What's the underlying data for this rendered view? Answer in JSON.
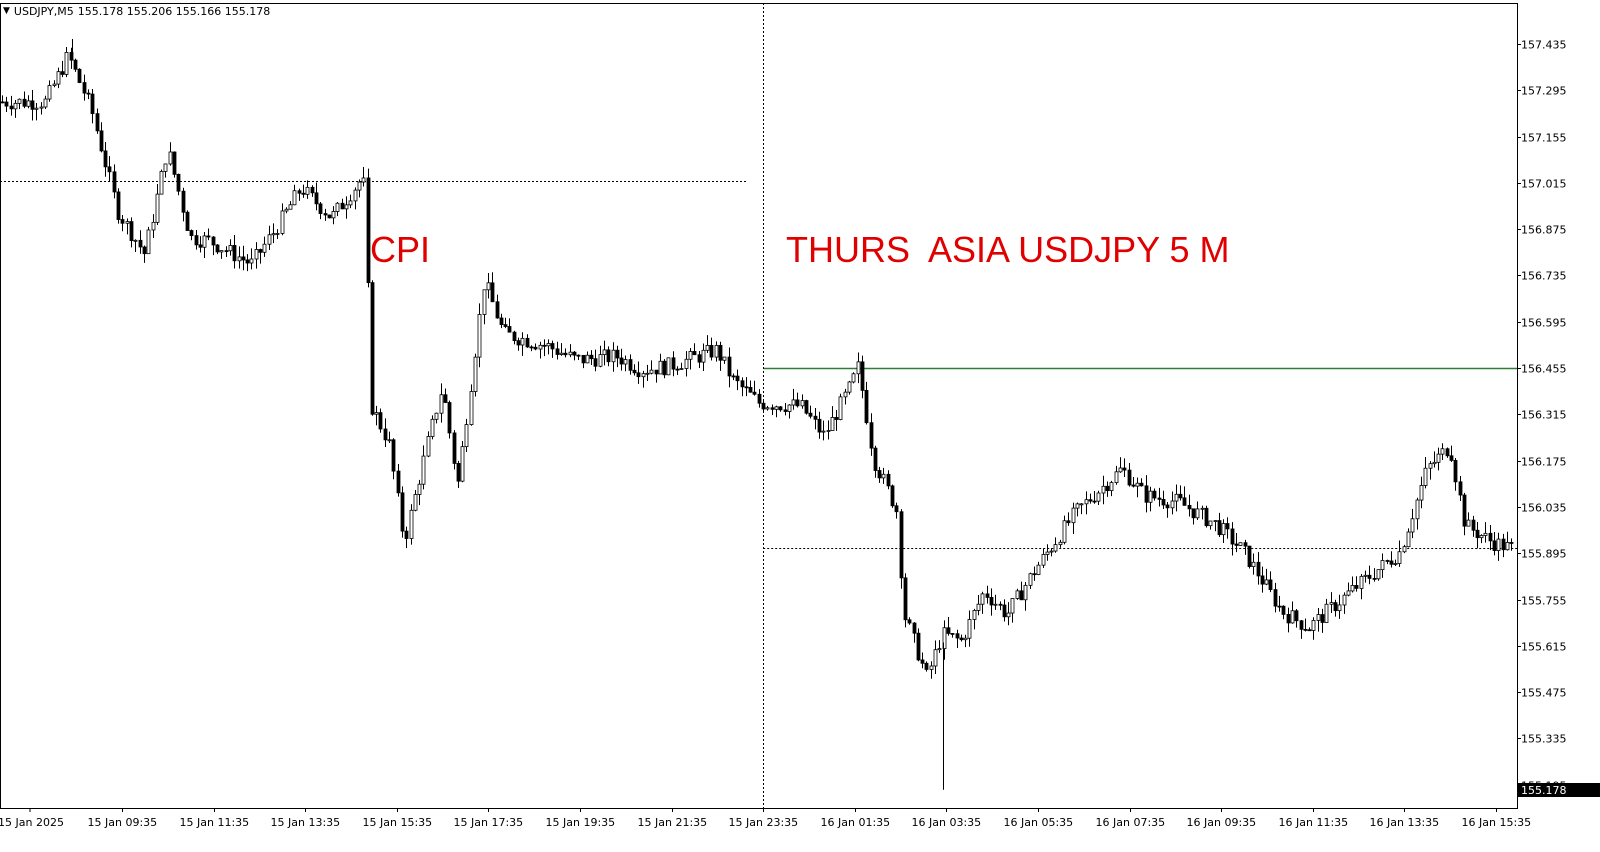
{
  "header": {
    "symbol": "USDJPY,M5",
    "ohlc": "155.178 155.206 155.166 155.178"
  },
  "annotations": {
    "cpi": "CPI",
    "session": "THURS  ASIA USDJPY 5 M"
  },
  "price_axis": {
    "labels": [
      "157.435",
      "157.295",
      "157.155",
      "157.015",
      "156.875",
      "156.735",
      "156.595",
      "156.455",
      "156.315",
      "156.175",
      "156.035",
      "155.895",
      "155.755",
      "155.615",
      "155.475",
      "155.335",
      "155.195"
    ],
    "current_price": "155.178"
  },
  "time_axis": {
    "labels": [
      "15 Jan 2025",
      "15 Jan 09:35",
      "15 Jan 11:35",
      "15 Jan 13:35",
      "15 Jan 15:35",
      "15 Jan 17:35",
      "15 Jan 19:35",
      "15 Jan 21:35",
      "15 Jan 23:35",
      "16 Jan 01:35",
      "16 Jan 03:35",
      "16 Jan 05:35",
      "16 Jan 07:35",
      "16 Jan 09:35",
      "16 Jan 11:35",
      "16 Jan 13:35",
      "16 Jan 15:35"
    ]
  },
  "colors": {
    "candle": "#000000",
    "horizontal_line": "#2e7d32",
    "annotation": "#e00000",
    "grid": "#000000"
  },
  "chart_data": {
    "type": "candlestick",
    "symbol": "USDJPY",
    "timeframe": "M5",
    "ylim": [
      155.165,
      157.505
    ],
    "x_ticks": [
      "15 Jan 2025",
      "15 Jan 09:35",
      "15 Jan 11:35",
      "15 Jan 13:35",
      "15 Jan 15:35",
      "15 Jan 17:35",
      "15 Jan 19:35",
      "15 Jan 21:35",
      "15 Jan 23:35",
      "16 Jan 01:35",
      "16 Jan 03:35",
      "16 Jan 05:35",
      "16 Jan 07:35",
      "16 Jan 09:35",
      "16 Jan 11:35",
      "16 Jan 13:35",
      "16 Jan 15:35"
    ],
    "y_ticks": [
      157.435,
      157.295,
      157.155,
      157.015,
      156.875,
      156.735,
      156.595,
      156.455,
      156.315,
      156.175,
      156.035,
      155.895,
      155.755,
      155.615,
      155.475,
      155.335,
      155.195
    ],
    "close_path": [
      [
        "15 Jan 08:00",
        157.26
      ],
      [
        "15 Jan 08:30",
        157.4
      ],
      [
        "15 Jan 09:00",
        157.24
      ],
      [
        "15 Jan 09:35",
        156.93
      ],
      [
        "15 Jan 10:10",
        156.8
      ],
      [
        "15 Jan 10:40",
        157.12
      ],
      [
        "15 Jan 11:10",
        156.85
      ],
      [
        "15 Jan 11:35",
        156.84
      ],
      [
        "15 Jan 12:30",
        156.77
      ],
      [
        "15 Jan 13:00",
        156.87
      ],
      [
        "15 Jan 13:35",
        157.0
      ],
      [
        "15 Jan 14:15",
        156.91
      ],
      [
        "15 Jan 14:55",
        157.03
      ],
      [
        "15 Jan 15:00",
        156.97
      ],
      [
        "15 Jan 15:05",
        156.35
      ],
      [
        "15 Jan 15:30",
        156.23
      ],
      [
        "15 Jan 15:50",
        155.93
      ],
      [
        "15 Jan 16:20",
        156.22
      ],
      [
        "15 Jan 16:40",
        156.4
      ],
      [
        "15 Jan 17:00",
        156.1
      ],
      [
        "15 Jan 17:35",
        156.72
      ],
      [
        "15 Jan 18:00",
        156.56
      ],
      [
        "15 Jan 19:00",
        156.52
      ],
      [
        "15 Jan 19:35",
        156.48
      ],
      [
        "15 Jan 20:30",
        156.49
      ],
      [
        "15 Jan 21:00",
        156.45
      ],
      [
        "15 Jan 21:35",
        156.46
      ],
      [
        "15 Jan 22:40",
        156.51
      ],
      [
        "15 Jan 23:00",
        156.42
      ],
      [
        "15 Jan 23:35",
        156.35
      ],
      [
        "16 Jan 00:30",
        156.34
      ],
      [
        "16 Jan 01:00",
        156.25
      ],
      [
        "16 Jan 01:35",
        156.4
      ],
      [
        "16 Jan 01:45",
        156.46
      ],
      [
        "16 Jan 02:05",
        156.18
      ],
      [
        "16 Jan 02:35",
        156.03
      ],
      [
        "16 Jan 02:45",
        155.71
      ],
      [
        "16 Jan 03:15",
        155.52
      ],
      [
        "16 Jan 03:35",
        155.65
      ],
      [
        "16 Jan 04:00",
        155.63
      ],
      [
        "16 Jan 04:30",
        155.78
      ],
      [
        "16 Jan 05:00",
        155.71
      ],
      [
        "16 Jan 05:35",
        155.84
      ],
      [
        "16 Jan 06:30",
        156.02
      ],
      [
        "16 Jan 07:30",
        156.15
      ],
      [
        "16 Jan 08:00",
        156.07
      ],
      [
        "16 Jan 08:45",
        156.05
      ],
      [
        "16 Jan 09:35",
        155.98
      ],
      [
        "16 Jan 10:10",
        155.9
      ],
      [
        "16 Jan 11:00",
        155.72
      ],
      [
        "16 Jan 11:35",
        155.67
      ],
      [
        "16 Jan 12:30",
        155.78
      ],
      [
        "16 Jan 13:35",
        155.9
      ],
      [
        "16 Jan 14:10",
        156.15
      ],
      [
        "16 Jan 14:40",
        156.22
      ],
      [
        "16 Jan 15:00",
        155.98
      ],
      [
        "16 Jan 15:35",
        155.93
      ],
      [
        "16 Jan 16:00",
        155.91
      ]
    ],
    "extremes": {
      "high": {
        "time": "15 Jan 08:30",
        "price": 157.45
      },
      "low": {
        "time": "16 Jan 03:30",
        "price": 155.18
      }
    },
    "horizontal_levels": [
      {
        "price": 157.02,
        "style": "dotted",
        "from": "15 Jan 2025",
        "to": "15 Jan 23:35"
      },
      {
        "price": 156.455,
        "style": "solid",
        "color": "#2e7d32",
        "from": "15 Jan 23:35",
        "to": "16 Jan 15:35"
      },
      {
        "price": 155.91,
        "style": "dotted",
        "from": "15 Jan 23:35",
        "to": "16 Jan 15:35"
      }
    ],
    "vertical_markers": [
      {
        "time": "15 Jan 23:35",
        "style": "dotted"
      }
    ],
    "annotations": [
      "CPI",
      "THURS  ASIA USDJPY 5 M"
    ]
  }
}
